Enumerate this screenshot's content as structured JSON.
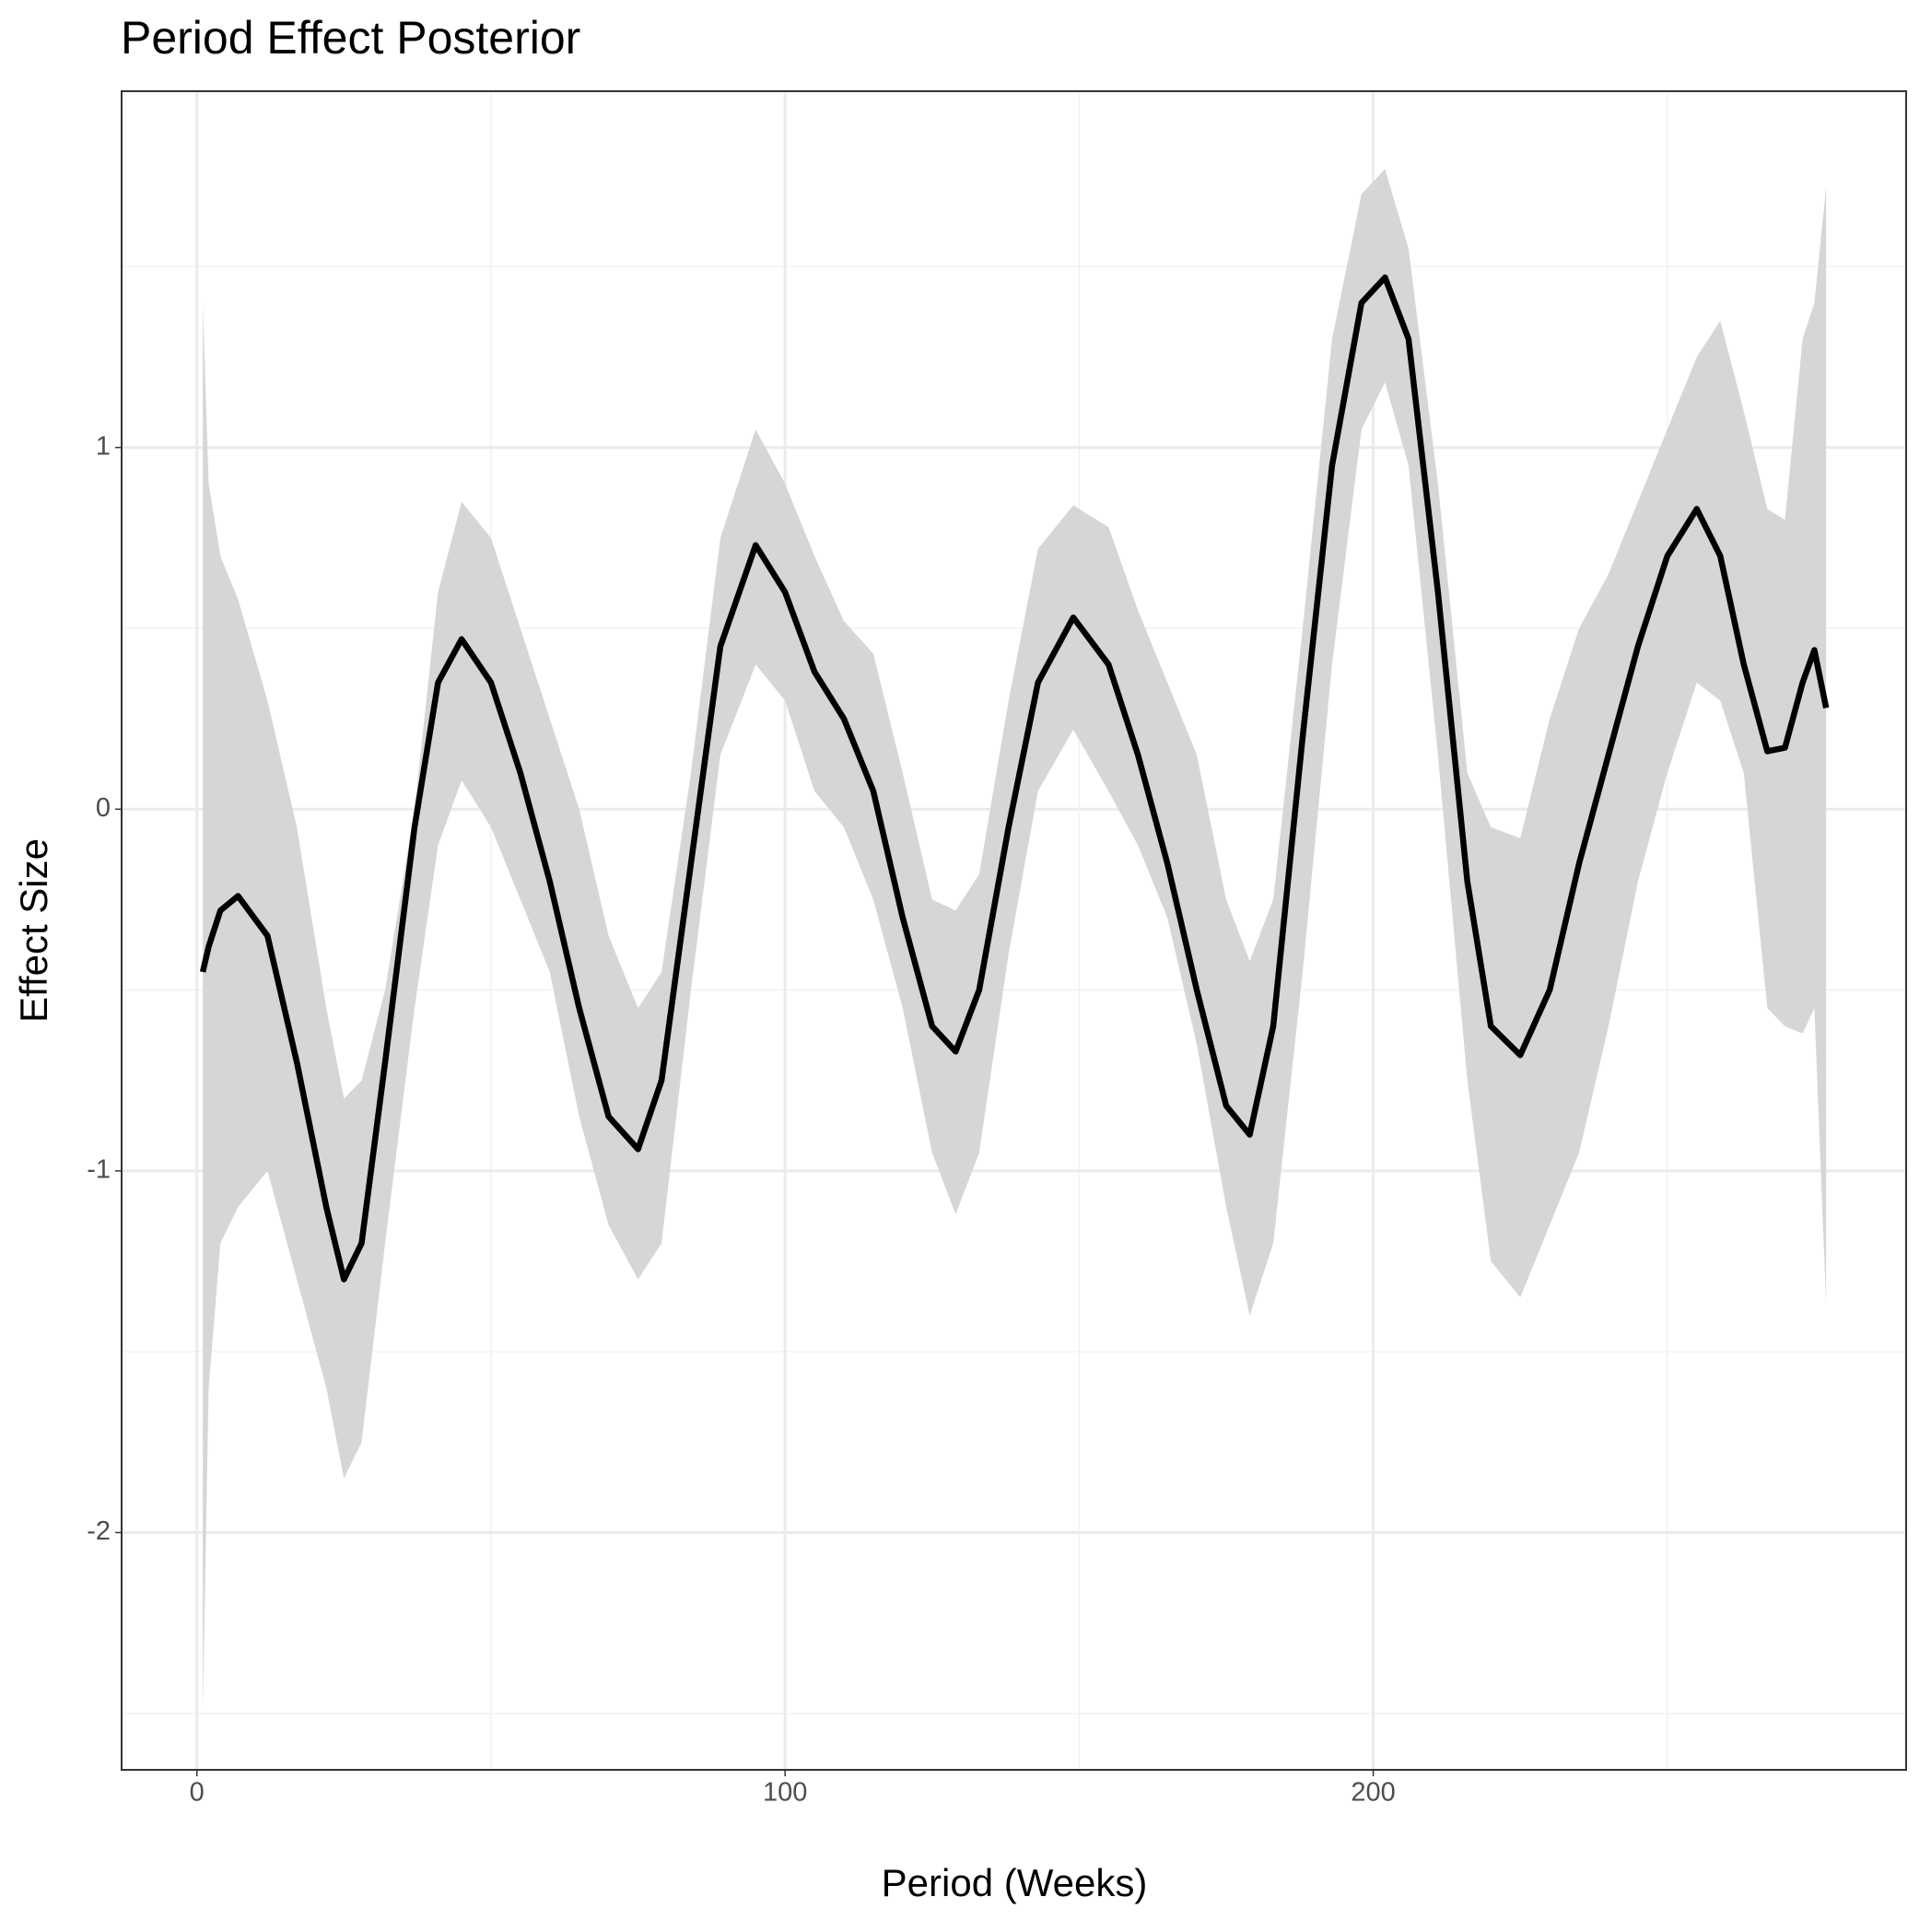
{
  "chart_data": {
    "type": "line",
    "title": "Period Effect Posterior",
    "x_label": "Period (Weeks)",
    "y_label": "Effect Size",
    "x": [
      1,
      2,
      4,
      7,
      12,
      17,
      22,
      25,
      28,
      32,
      37,
      41,
      45,
      50,
      55,
      60,
      65,
      70,
      75,
      79,
      84,
      89,
      95,
      100,
      105,
      110,
      115,
      120,
      125,
      129,
      133,
      138,
      143,
      149,
      155,
      160,
      165,
      170,
      175,
      179,
      183,
      188,
      193,
      198,
      202,
      206,
      211,
      216,
      220,
      225,
      230,
      235,
      240,
      245,
      250,
      255,
      259,
      263,
      267,
      270,
      273,
      275,
      277
    ],
    "series": [
      {
        "color": "#000000",
        "values": [
          -0.45,
          -0.38,
          -0.28,
          -0.24,
          -0.35,
          -0.7,
          -1.1,
          -1.3,
          -1.2,
          -0.7,
          -0.05,
          0.35,
          0.47,
          0.35,
          0.1,
          -0.2,
          -0.55,
          -0.85,
          -0.94,
          -0.75,
          -0.15,
          0.45,
          0.73,
          0.6,
          0.38,
          0.25,
          0.05,
          -0.3,
          -0.6,
          -0.67,
          -0.5,
          -0.05,
          0.35,
          0.53,
          0.4,
          0.15,
          -0.15,
          -0.5,
          -0.82,
          -0.9,
          -0.6,
          0.2,
          0.95,
          1.4,
          1.47,
          1.3,
          0.6,
          -0.2,
          -0.6,
          -0.68,
          -0.5,
          -0.15,
          0.15,
          0.45,
          0.7,
          0.83,
          0.7,
          0.4,
          0.16,
          0.17,
          0.35,
          0.44,
          0.28
        ]
      }
    ],
    "band": {
      "color": "#d6d6d6",
      "upper": [
        1.4,
        0.9,
        0.7,
        0.58,
        0.3,
        -0.05,
        -0.55,
        -0.8,
        -0.75,
        -0.5,
        0.0,
        0.6,
        0.85,
        0.75,
        0.5,
        0.25,
        0.0,
        -0.35,
        -0.55,
        -0.45,
        0.1,
        0.75,
        1.05,
        0.9,
        0.7,
        0.52,
        0.43,
        0.1,
        -0.25,
        -0.28,
        -0.18,
        0.3,
        0.72,
        0.84,
        0.78,
        0.55,
        0.35,
        0.15,
        -0.25,
        -0.42,
        -0.25,
        0.5,
        1.3,
        1.7,
        1.77,
        1.55,
        0.9,
        0.1,
        -0.05,
        -0.08,
        0.25,
        0.5,
        0.65,
        0.85,
        1.05,
        1.25,
        1.35,
        1.1,
        0.83,
        0.8,
        1.3,
        1.4,
        1.72
      ],
      "lower": [
        -2.5,
        -1.6,
        -1.2,
        -1.1,
        -1.0,
        -1.3,
        -1.6,
        -1.85,
        -1.75,
        -1.2,
        -0.55,
        -0.1,
        0.08,
        -0.05,
        -0.25,
        -0.45,
        -0.85,
        -1.15,
        -1.3,
        -1.2,
        -0.5,
        0.15,
        0.4,
        0.3,
        0.05,
        -0.05,
        -0.25,
        -0.55,
        -0.95,
        -1.12,
        -0.95,
        -0.4,
        0.05,
        0.22,
        0.05,
        -0.1,
        -0.3,
        -0.65,
        -1.1,
        -1.4,
        -1.2,
        -0.45,
        0.4,
        1.05,
        1.18,
        0.95,
        0.15,
        -0.75,
        -1.25,
        -1.35,
        -1.15,
        -0.95,
        -0.6,
        -0.2,
        0.1,
        0.35,
        0.3,
        0.1,
        -0.55,
        -0.6,
        -0.62,
        -0.55,
        -1.37
      ]
    },
    "xlim": [
      -12.8,
      290.6
    ],
    "ylim": [
      -2.656,
      1.985
    ],
    "xticks": [
      0,
      100,
      200
    ],
    "yticks": [
      -2,
      -1,
      0,
      1
    ],
    "xminor": [
      50,
      150,
      250
    ],
    "yminor": [
      -2.5,
      -1.5,
      -0.5,
      0.5,
      1.5
    ],
    "grid": true
  }
}
